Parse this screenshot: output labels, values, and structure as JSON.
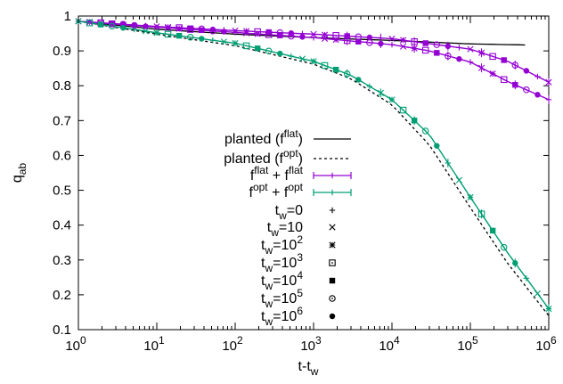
{
  "chart_data": {
    "type": "scatter",
    "xlabel": {
      "base": "t-t",
      "sub": "w"
    },
    "ylabel": {
      "base": "q",
      "sub": "ab"
    },
    "x_scale": "log",
    "x_range": [
      1,
      1000000
    ],
    "y_range": [
      0.1,
      1.0
    ],
    "x_ticks": [
      {
        "value": 1,
        "base": "10",
        "exp": "0"
      },
      {
        "value": 10,
        "base": "10",
        "exp": "1"
      },
      {
        "value": 100,
        "base": "10",
        "exp": "2"
      },
      {
        "value": 1000,
        "base": "10",
        "exp": "3"
      },
      {
        "value": 10000,
        "base": "10",
        "exp": "4"
      },
      {
        "value": 100000,
        "base": "10",
        "exp": "5"
      },
      {
        "value": 1000000,
        "base": "10",
        "exp": "6"
      }
    ],
    "y_ticks": [
      {
        "value": 0.1,
        "label": "0.1"
      },
      {
        "value": 0.2,
        "label": "0.2"
      },
      {
        "value": 0.3,
        "label": "0.3"
      },
      {
        "value": 0.4,
        "label": "0.4"
      },
      {
        "value": 0.5,
        "label": "0.5"
      },
      {
        "value": 0.6,
        "label": "0.6"
      },
      {
        "value": 0.7,
        "label": "0.7"
      },
      {
        "value": 0.8,
        "label": "0.8"
      },
      {
        "value": 0.9,
        "label": "0.9"
      },
      {
        "value": 1.0,
        "label": "1"
      }
    ],
    "grid": false,
    "legend_position": "left-center",
    "colors": {
      "flat": "#9400d3",
      "opt": "#009e73",
      "planted": "#000000"
    },
    "legend": [
      {
        "key": "planted-flat",
        "parts": [
          {
            "t": "planted (f",
            "s": "n"
          },
          {
            "t": "flat",
            "s": "sup"
          },
          {
            "t": ")",
            "s": "n"
          }
        ],
        "style": "solid-line",
        "color": "#000000"
      },
      {
        "key": "planted-opt",
        "parts": [
          {
            "t": "planted (f",
            "s": "n"
          },
          {
            "t": "opt",
            "s": "sup"
          },
          {
            "t": ")",
            "s": "n"
          }
        ],
        "style": "dashed-line",
        "color": "#000000"
      },
      {
        "key": "flat-flat",
        "parts": [
          {
            "t": "f",
            "s": "n"
          },
          {
            "t": "flat",
            "s": "sup"
          },
          {
            "t": " + f",
            "s": "n"
          },
          {
            "t": "flat",
            "s": "sup"
          }
        ],
        "style": "errorbar-line",
        "color": "#9400d3"
      },
      {
        "key": "opt-opt",
        "parts": [
          {
            "t": "f",
            "s": "n"
          },
          {
            "t": "opt",
            "s": "sup"
          },
          {
            "t": " + f",
            "s": "n"
          },
          {
            "t": "opt",
            "s": "sup"
          }
        ],
        "style": "errorbar-line",
        "color": "#009e73"
      },
      {
        "key": "tw0",
        "parts": [
          {
            "t": "t",
            "s": "n"
          },
          {
            "t": "w",
            "s": "sub"
          },
          {
            "t": "=0",
            "s": "n"
          }
        ],
        "style": "marker",
        "marker": "plus",
        "color": "#000000"
      },
      {
        "key": "tw1",
        "parts": [
          {
            "t": "t",
            "s": "n"
          },
          {
            "t": "w",
            "s": "sub"
          },
          {
            "t": "=10",
            "s": "n"
          }
        ],
        "style": "marker",
        "marker": "cross",
        "color": "#000000"
      },
      {
        "key": "tw2",
        "parts": [
          {
            "t": "t",
            "s": "n"
          },
          {
            "t": "w",
            "s": "sub"
          },
          {
            "t": "=10",
            "s": "n"
          },
          {
            "t": "2",
            "s": "sup"
          }
        ],
        "style": "marker",
        "marker": "star",
        "color": "#000000"
      },
      {
        "key": "tw3",
        "parts": [
          {
            "t": "t",
            "s": "n"
          },
          {
            "t": "w",
            "s": "sub"
          },
          {
            "t": "=10",
            "s": "n"
          },
          {
            "t": "3",
            "s": "sup"
          }
        ],
        "style": "marker",
        "marker": "boxdot",
        "color": "#000000"
      },
      {
        "key": "tw4",
        "parts": [
          {
            "t": "t",
            "s": "n"
          },
          {
            "t": "w",
            "s": "sub"
          },
          {
            "t": "=10",
            "s": "n"
          },
          {
            "t": "4",
            "s": "sup"
          }
        ],
        "style": "marker",
        "marker": "square",
        "color": "#000000"
      },
      {
        "key": "tw5",
        "parts": [
          {
            "t": "t",
            "s": "n"
          },
          {
            "t": "w",
            "s": "sub"
          },
          {
            "t": "=10",
            "s": "n"
          },
          {
            "t": "5",
            "s": "sup"
          }
        ],
        "style": "marker",
        "marker": "circledot",
        "color": "#000000"
      },
      {
        "key": "tw6",
        "parts": [
          {
            "t": "t",
            "s": "n"
          },
          {
            "t": "w",
            "s": "sub"
          },
          {
            "t": "=10",
            "s": "n"
          },
          {
            "t": "6",
            "s": "sup"
          }
        ],
        "style": "marker",
        "marker": "disc",
        "color": "#000000"
      }
    ],
    "series": [
      {
        "key": "planted-flat",
        "style": "line",
        "dash": false,
        "color": "#000000",
        "x": [
          1,
          10,
          100,
          1000,
          10000,
          100000,
          500000
        ],
        "y": [
          0.985,
          0.962,
          0.948,
          0.938,
          0.93,
          0.92,
          0.917
        ]
      },
      {
        "key": "planted-opt",
        "style": "line",
        "dash": true,
        "color": "#000000",
        "x": [
          1,
          10,
          100,
          1000,
          3000,
          10000,
          30000,
          100000,
          300000,
          1000000
        ],
        "y": [
          0.985,
          0.948,
          0.915,
          0.862,
          0.82,
          0.745,
          0.63,
          0.45,
          0.29,
          0.14
        ]
      },
      {
        "key": "flat-flat",
        "style": "errorbar-line",
        "color": "#9400d3",
        "x": [
          1,
          10,
          100,
          1000,
          10000,
          30000,
          100000,
          300000,
          1000000
        ],
        "y": [
          0.985,
          0.968,
          0.953,
          0.938,
          0.918,
          0.9,
          0.868,
          0.812,
          0.76
        ]
      },
      {
        "key": "flat-flat-upper",
        "style": "errorbar-line",
        "color": "#9400d3",
        "x": [
          1,
          10,
          100,
          1000,
          10000,
          100000,
          300000,
          1000000
        ],
        "y": [
          0.985,
          0.97,
          0.958,
          0.948,
          0.935,
          0.905,
          0.87,
          0.81
        ]
      },
      {
        "key": "opt-opt",
        "style": "errorbar-line",
        "color": "#009e73",
        "x": [
          1,
          10,
          100,
          1000,
          3000,
          10000,
          30000,
          100000,
          300000,
          1000000
        ],
        "y": [
          0.985,
          0.952,
          0.922,
          0.87,
          0.83,
          0.76,
          0.66,
          0.48,
          0.32,
          0.16
        ]
      }
    ]
  }
}
